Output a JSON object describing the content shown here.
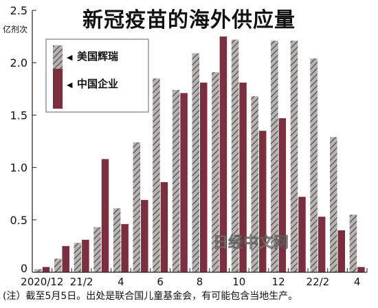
{
  "title": "新冠疫苗的海外供应量",
  "unit_label": "亿剂次",
  "note": "(注）截至5月5日。出处是联合国儿童基金会，有可能包含当地生产。",
  "watermark": "日经中文网",
  "colors": {
    "pfizer": "#b7b3b1",
    "pfizer_hatch": "#4a4747",
    "china": "#7b2e3d",
    "axis": "#222222",
    "grid": "#dddddd"
  },
  "chart_data": {
    "type": "bar",
    "title": "新冠疫苗的海外供应量",
    "ylabel": "亿剂次",
    "xlabel": "",
    "ylim": [
      0,
      2.5
    ],
    "yticks": [
      0,
      0.5,
      1.0,
      1.5,
      2.0,
      2.5
    ],
    "ytick_labels": [
      "0",
      "0.5",
      "1.0",
      "1.5",
      "2.0",
      "2.5"
    ],
    "categories": [
      "2020/12",
      "21/1",
      "21/2",
      "3",
      "4",
      "5",
      "6",
      "7",
      "8",
      "9",
      "10",
      "11",
      "12",
      "22/1",
      "22/2",
      "3",
      "4"
    ],
    "x_tick_labels": [
      "2020/12",
      "",
      "21/2",
      "",
      "4",
      "",
      "6",
      "",
      "8",
      "",
      "10",
      "",
      "12",
      "",
      "22/2",
      "",
      "4"
    ],
    "legend_position": "top-left",
    "grid": false,
    "series": [
      {
        "name": "美国辉瑞",
        "style": "hatched",
        "values": [
          0.03,
          0.13,
          0.28,
          0.43,
          0.61,
          1.24,
          1.85,
          1.74,
          2.09,
          1.91,
          2.22,
          1.68,
          2.21,
          2.21,
          2.04,
          1.29,
          0.55
        ]
      },
      {
        "name": "中国企业",
        "style": "solid",
        "values": [
          0.05,
          0.25,
          0.31,
          1.08,
          0.46,
          0.69,
          0.86,
          1.71,
          1.81,
          2.25,
          1.81,
          1.35,
          1.47,
          0.72,
          0.53,
          0.4,
          0.05
        ]
      }
    ]
  }
}
